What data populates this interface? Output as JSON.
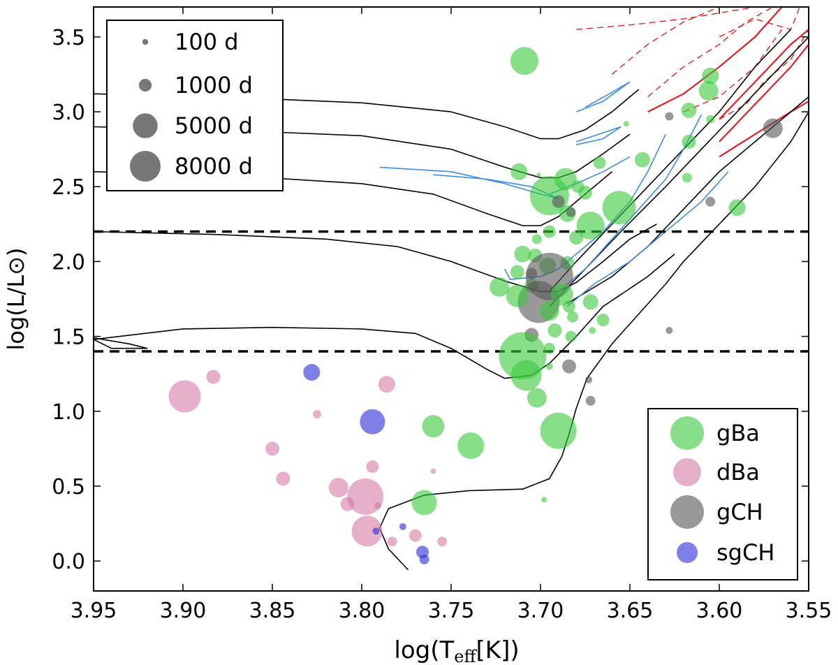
{
  "chart_data": {
    "type": "scatter",
    "xlabel_main": "log(T",
    "xlabel_sub": "eff",
    "xlabel_tail": "[K])",
    "ylabel": "log(L/L⊙)",
    "xlim": [
      3.95,
      3.55
    ],
    "ylim": [
      -0.2,
      3.7
    ],
    "x_ticks": [
      "3.95",
      "3.90",
      "3.85",
      "3.80",
      "3.75",
      "3.70",
      "3.65",
      "3.60",
      "3.55"
    ],
    "x_tick_values": [
      3.95,
      3.9,
      3.85,
      3.8,
      3.75,
      3.7,
      3.65,
      3.6,
      3.55
    ],
    "y_ticks": [
      "0.0",
      "0.5",
      "1.0",
      "1.5",
      "2.0",
      "2.5",
      "3.0",
      "3.5"
    ],
    "y_tick_values": [
      0.0,
      0.5,
      1.0,
      1.5,
      2.0,
      2.5,
      3.0,
      3.5
    ],
    "hlines": [
      2.2,
      1.4
    ],
    "size_legend": [
      {
        "label": "100 d",
        "period": 100
      },
      {
        "label": "1000 d",
        "period": 1000
      },
      {
        "label": "5000 d",
        "period": 5000
      },
      {
        "label": "8000 d",
        "period": 8000
      }
    ],
    "class_legend": [
      {
        "label": "gBa",
        "color": "#3ac83a"
      },
      {
        "label": "dBa",
        "color": "#d67aa6"
      },
      {
        "label": "gCH",
        "color": "#555555"
      },
      {
        "label": "sgCH",
        "color": "#2a2ad8"
      }
    ],
    "track_colors": {
      "main": "#000000",
      "blue": "#3a8ee0",
      "red": "#e02020"
    },
    "tracks": [
      [
        [
          3.95,
          3.12
        ],
        [
          3.88,
          3.1
        ],
        [
          3.8,
          3.06
        ],
        [
          3.75,
          3.0
        ],
        [
          3.72,
          2.9
        ],
        [
          3.7,
          2.82
        ],
        [
          3.69,
          2.82
        ],
        [
          3.675,
          2.88
        ],
        [
          3.66,
          3.0
        ],
        [
          3.645,
          3.15
        ]
      ],
      [
        [
          3.95,
          2.9
        ],
        [
          3.88,
          2.88
        ],
        [
          3.8,
          2.84
        ],
        [
          3.75,
          2.75
        ],
        [
          3.72,
          2.63
        ],
        [
          3.7,
          2.56
        ],
        [
          3.69,
          2.56
        ],
        [
          3.68,
          2.6
        ],
        [
          3.665,
          2.72
        ],
        [
          3.65,
          2.85
        ]
      ],
      [
        [
          3.95,
          2.6
        ],
        [
          3.88,
          2.58
        ],
        [
          3.8,
          2.52
        ],
        [
          3.76,
          2.45
        ],
        [
          3.73,
          2.32
        ],
        [
          3.71,
          2.24
        ],
        [
          3.7,
          2.24
        ],
        [
          3.69,
          2.3
        ],
        [
          3.675,
          2.45
        ],
        [
          3.66,
          2.6
        ]
      ],
      [
        [
          3.95,
          2.2
        ],
        [
          3.88,
          2.18
        ],
        [
          3.82,
          2.15
        ],
        [
          3.78,
          2.1
        ],
        [
          3.75,
          2.0
        ],
        [
          3.72,
          1.87
        ],
        [
          3.7,
          1.8
        ],
        [
          3.69,
          1.8
        ],
        [
          3.68,
          1.86
        ],
        [
          3.665,
          2.0
        ],
        [
          3.65,
          2.15
        ],
        [
          3.635,
          2.25
        ]
      ],
      [
        [
          3.95,
          1.49
        ],
        [
          3.93,
          1.45
        ],
        [
          3.92,
          1.42
        ],
        [
          3.94,
          1.42
        ],
        [
          3.95,
          1.48
        ],
        [
          3.9,
          1.55
        ],
        [
          3.85,
          1.56
        ],
        [
          3.8,
          1.55
        ],
        [
          3.77,
          1.52
        ],
        [
          3.75,
          1.42
        ],
        [
          3.73,
          1.28
        ],
        [
          3.72,
          1.22
        ],
        [
          3.705,
          1.24
        ],
        [
          3.695,
          1.32
        ],
        [
          3.68,
          1.5
        ],
        [
          3.665,
          1.7
        ],
        [
          3.64,
          1.9
        ],
        [
          3.625,
          2.05
        ]
      ],
      [
        [
          3.774,
          -0.06
        ],
        [
          3.785,
          0.08
        ],
        [
          3.79,
          0.22
        ],
        [
          3.785,
          0.35
        ],
        [
          3.765,
          0.44
        ],
        [
          3.74,
          0.47
        ],
        [
          3.71,
          0.48
        ],
        [
          3.695,
          0.55
        ],
        [
          3.688,
          0.7
        ],
        [
          3.684,
          0.85
        ],
        [
          3.68,
          1.02
        ],
        [
          3.674,
          1.22
        ],
        [
          3.66,
          1.45
        ],
        [
          3.645,
          1.65
        ],
        [
          3.63,
          1.85
        ],
        [
          3.62,
          2.0
        ],
        [
          3.6,
          2.25
        ],
        [
          3.58,
          2.5
        ],
        [
          3.56,
          2.8
        ],
        [
          3.55,
          3.0
        ]
      ],
      [
        [
          3.695,
          1.8
        ],
        [
          3.68,
          2.0
        ],
        [
          3.66,
          2.25
        ],
        [
          3.64,
          2.5
        ],
        [
          3.62,
          2.75
        ],
        [
          3.6,
          3.0
        ],
        [
          3.58,
          3.3
        ],
        [
          3.56,
          3.55
        ]
      ],
      [
        [
          3.695,
          1.7
        ],
        [
          3.675,
          1.95
        ],
        [
          3.655,
          2.2
        ],
        [
          3.63,
          2.5
        ],
        [
          3.61,
          2.75
        ],
        [
          3.59,
          3.0
        ],
        [
          3.57,
          3.25
        ],
        [
          3.55,
          3.5
        ]
      ],
      [
        [
          3.685,
          1.72
        ],
        [
          3.66,
          1.9
        ],
        [
          3.64,
          2.1
        ],
        [
          3.62,
          2.35
        ],
        [
          3.6,
          2.6
        ],
        [
          3.58,
          2.8
        ],
        [
          3.56,
          3.0
        ],
        [
          3.55,
          3.1
        ]
      ]
    ],
    "blue_tracks": [
      [
        [
          3.79,
          2.63
        ],
        [
          3.75,
          2.6
        ],
        [
          3.72,
          2.52
        ],
        [
          3.7,
          2.45
        ],
        [
          3.69,
          2.42
        ],
        [
          3.705,
          2.5
        ],
        [
          3.73,
          2.55
        ],
        [
          3.76,
          2.58
        ]
      ],
      [
        [
          3.68,
          2.78
        ],
        [
          3.665,
          2.82
        ],
        [
          3.655,
          2.9
        ],
        [
          3.665,
          2.86
        ],
        [
          3.68,
          2.8
        ]
      ],
      [
        [
          3.68,
          3.0
        ],
        [
          3.665,
          3.07
        ],
        [
          3.65,
          3.2
        ],
        [
          3.66,
          3.13
        ],
        [
          3.675,
          3.03
        ]
      ],
      [
        [
          3.69,
          1.8
        ],
        [
          3.675,
          1.95
        ],
        [
          3.66,
          2.15
        ],
        [
          3.645,
          2.35
        ],
        [
          3.63,
          2.55
        ],
        [
          3.62,
          2.75
        ],
        [
          3.61,
          2.98
        ]
      ],
      [
        [
          3.72,
          1.95
        ],
        [
          3.717,
          1.88
        ],
        [
          3.7,
          1.9
        ],
        [
          3.69,
          1.95
        ],
        [
          3.68,
          2.05
        ],
        [
          3.665,
          2.2
        ],
        [
          3.65,
          2.4
        ],
        [
          3.64,
          2.6
        ],
        [
          3.63,
          2.85
        ]
      ],
      [
        [
          3.685,
          1.7
        ],
        [
          3.67,
          1.85
        ],
        [
          3.65,
          2.0
        ],
        [
          3.63,
          2.2
        ],
        [
          3.61,
          2.4
        ],
        [
          3.595,
          2.6
        ]
      ],
      [
        [
          3.695,
          2.45
        ],
        [
          3.68,
          2.52
        ],
        [
          3.665,
          2.6
        ],
        [
          3.65,
          2.7
        ]
      ]
    ],
    "red_tracks": [
      [
        [
          3.64,
          3.0
        ],
        [
          3.62,
          3.12
        ],
        [
          3.6,
          3.3
        ],
        [
          3.58,
          3.5
        ],
        [
          3.565,
          3.7
        ]
      ],
      [
        [
          3.6,
          2.8
        ],
        [
          3.58,
          3.05
        ],
        [
          3.56,
          3.3
        ],
        [
          3.55,
          3.45
        ]
      ],
      [
        [
          3.6,
          2.7
        ],
        [
          3.58,
          2.85
        ],
        [
          3.56,
          3.0
        ],
        [
          3.55,
          3.07
        ]
      ],
      [
        [
          3.6,
          2.95
        ],
        [
          3.58,
          3.2
        ],
        [
          3.56,
          3.45
        ],
        [
          3.55,
          3.55
        ]
      ]
    ],
    "red_dashed": [
      [
        [
          3.64,
          3.1
        ],
        [
          3.62,
          3.3
        ],
        [
          3.6,
          3.45
        ],
        [
          3.585,
          3.6
        ],
        [
          3.57,
          3.7
        ]
      ],
      [
        [
          3.66,
          3.25
        ],
        [
          3.64,
          3.45
        ],
        [
          3.62,
          3.6
        ],
        [
          3.6,
          3.7
        ]
      ],
      [
        [
          3.68,
          3.55
        ],
        [
          3.65,
          3.58
        ],
        [
          3.62,
          3.62
        ],
        [
          3.6,
          3.66
        ],
        [
          3.58,
          3.7
        ]
      ],
      [
        [
          3.62,
          3.0
        ],
        [
          3.6,
          3.1
        ],
        [
          3.58,
          3.3
        ],
        [
          3.565,
          3.55
        ]
      ],
      [
        [
          3.6,
          2.95
        ],
        [
          3.585,
          3.05
        ],
        [
          3.575,
          3.2
        ],
        [
          3.56,
          3.35
        ],
        [
          3.55,
          3.55
        ]
      ],
      [
        [
          3.6,
          3.5
        ],
        [
          3.58,
          3.62
        ],
        [
          3.56,
          3.55
        ],
        [
          3.555,
          3.7
        ]
      ]
    ],
    "points": [
      {
        "x": 3.709,
        "y": 3.34,
        "r": 20,
        "c": "gBa"
      },
      {
        "x": 3.605,
        "y": 3.24,
        "r": 12,
        "c": "gBa"
      },
      {
        "x": 3.606,
        "y": 3.14,
        "r": 14,
        "c": "gBa"
      },
      {
        "x": 3.617,
        "y": 3.01,
        "r": 11,
        "c": "gBa"
      },
      {
        "x": 3.605,
        "y": 2.95,
        "r": 6,
        "c": "gBa"
      },
      {
        "x": 3.628,
        "y": 2.97,
        "r": 6,
        "c": "gCH"
      },
      {
        "x": 3.57,
        "y": 2.89,
        "r": 14,
        "c": "gCH"
      },
      {
        "x": 3.617,
        "y": 2.8,
        "r": 10,
        "c": "gBa"
      },
      {
        "x": 3.643,
        "y": 2.68,
        "r": 11,
        "c": "gBa"
      },
      {
        "x": 3.667,
        "y": 2.66,
        "r": 9,
        "c": "gBa"
      },
      {
        "x": 3.712,
        "y": 2.6,
        "r": 12,
        "c": "gBa"
      },
      {
        "x": 3.686,
        "y": 2.55,
        "r": 16,
        "c": "gBa"
      },
      {
        "x": 3.695,
        "y": 2.44,
        "r": 28,
        "c": "gBa"
      },
      {
        "x": 3.679,
        "y": 2.5,
        "r": 9,
        "c": "gBa"
      },
      {
        "x": 3.675,
        "y": 2.46,
        "r": 10,
        "c": "gBa"
      },
      {
        "x": 3.618,
        "y": 2.56,
        "r": 7,
        "c": "gBa"
      },
      {
        "x": 3.69,
        "y": 2.4,
        "r": 9,
        "c": "gCH"
      },
      {
        "x": 3.656,
        "y": 2.36,
        "r": 24,
        "c": "gBa"
      },
      {
        "x": 3.605,
        "y": 2.4,
        "r": 7,
        "c": "gCH"
      },
      {
        "x": 3.59,
        "y": 2.36,
        "r": 12,
        "c": "gBa"
      },
      {
        "x": 3.685,
        "y": 2.32,
        "r": 12,
        "c": "gBa"
      },
      {
        "x": 3.683,
        "y": 2.33,
        "r": 7,
        "c": "gCH"
      },
      {
        "x": 3.672,
        "y": 2.24,
        "r": 20,
        "c": "gBa"
      },
      {
        "x": 3.695,
        "y": 2.2,
        "r": 9,
        "c": "gBa"
      },
      {
        "x": 3.68,
        "y": 2.16,
        "r": 10,
        "c": "gBa"
      },
      {
        "x": 3.702,
        "y": 2.15,
        "r": 7,
        "c": "gBa"
      },
      {
        "x": 3.71,
        "y": 2.05,
        "r": 12,
        "c": "gBa"
      },
      {
        "x": 3.703,
        "y": 2.04,
        "r": 10,
        "c": "gBa"
      },
      {
        "x": 3.696,
        "y": 1.97,
        "r": 12,
        "c": "gBa"
      },
      {
        "x": 3.685,
        "y": 1.99,
        "r": 10,
        "c": "gBa"
      },
      {
        "x": 3.713,
        "y": 1.93,
        "r": 10,
        "c": "gBa"
      },
      {
        "x": 3.723,
        "y": 1.83,
        "r": 14,
        "c": "gBa"
      },
      {
        "x": 3.705,
        "y": 1.84,
        "r": 10,
        "c": "gBa"
      },
      {
        "x": 3.705,
        "y": 1.92,
        "r": 8,
        "c": "gCH"
      },
      {
        "x": 3.695,
        "y": 1.9,
        "r": 34,
        "c": "gCH"
      },
      {
        "x": 3.701,
        "y": 1.73,
        "r": 30,
        "c": "gCH"
      },
      {
        "x": 3.713,
        "y": 1.77,
        "r": 16,
        "c": "gBa"
      },
      {
        "x": 3.688,
        "y": 1.78,
        "r": 16,
        "c": "gBa"
      },
      {
        "x": 3.695,
        "y": 1.67,
        "r": 14,
        "c": "gBa"
      },
      {
        "x": 3.684,
        "y": 1.7,
        "r": 9,
        "c": "gBa"
      },
      {
        "x": 3.672,
        "y": 1.73,
        "r": 11,
        "c": "gBa"
      },
      {
        "x": 3.665,
        "y": 1.61,
        "r": 9,
        "c": "gBa"
      },
      {
        "x": 3.682,
        "y": 1.63,
        "r": 8,
        "c": "gBa"
      },
      {
        "x": 3.692,
        "y": 1.54,
        "r": 10,
        "c": "gBa"
      },
      {
        "x": 3.671,
        "y": 1.54,
        "r": 5,
        "c": "gBa"
      },
      {
        "x": 3.683,
        "y": 1.5,
        "r": 8,
        "c": "gBa"
      },
      {
        "x": 3.705,
        "y": 1.51,
        "r": 10,
        "c": "gCH"
      },
      {
        "x": 3.695,
        "y": 1.42,
        "r": 8,
        "c": "gBa"
      },
      {
        "x": 3.71,
        "y": 1.37,
        "r": 34,
        "c": "gBa"
      },
      {
        "x": 3.708,
        "y": 1.24,
        "r": 22,
        "c": "gBa"
      },
      {
        "x": 3.695,
        "y": 1.3,
        "r": 5,
        "c": "gBa"
      },
      {
        "x": 3.684,
        "y": 1.3,
        "r": 10,
        "c": "gCH"
      },
      {
        "x": 3.673,
        "y": 1.21,
        "r": 5,
        "c": "gCH"
      },
      {
        "x": 3.672,
        "y": 1.07,
        "r": 7,
        "c": "gCH"
      },
      {
        "x": 3.628,
        "y": 1.54,
        "r": 5,
        "c": "gCH"
      },
      {
        "x": 3.702,
        "y": 1.09,
        "r": 14,
        "c": "gBa"
      },
      {
        "x": 3.69,
        "y": 0.87,
        "r": 26,
        "c": "gBa"
      },
      {
        "x": 3.76,
        "y": 0.9,
        "r": 16,
        "c": "gBa"
      },
      {
        "x": 3.739,
        "y": 0.77,
        "r": 19,
        "c": "gBa"
      },
      {
        "x": 3.765,
        "y": 0.39,
        "r": 18,
        "c": "gBa"
      },
      {
        "x": 3.698,
        "y": 0.41,
        "r": 4,
        "c": "gBa"
      },
      {
        "x": 3.701,
        "y": 2.58,
        "r": 3,
        "c": "gBa"
      },
      {
        "x": 3.652,
        "y": 2.92,
        "r": 4,
        "c": "gBa"
      },
      {
        "x": 3.899,
        "y": 1.1,
        "r": 23,
        "c": "dBa"
      },
      {
        "x": 3.883,
        "y": 1.23,
        "r": 10,
        "c": "dBa"
      },
      {
        "x": 3.786,
        "y": 1.18,
        "r": 12,
        "c": "dBa"
      },
      {
        "x": 3.825,
        "y": 0.98,
        "r": 6,
        "c": "dBa"
      },
      {
        "x": 3.85,
        "y": 0.75,
        "r": 10,
        "c": "dBa"
      },
      {
        "x": 3.844,
        "y": 0.55,
        "r": 10,
        "c": "dBa"
      },
      {
        "x": 3.794,
        "y": 0.63,
        "r": 9,
        "c": "dBa"
      },
      {
        "x": 3.76,
        "y": 0.6,
        "r": 4,
        "c": "dBa"
      },
      {
        "x": 3.813,
        "y": 0.49,
        "r": 14,
        "c": "dBa"
      },
      {
        "x": 3.798,
        "y": 0.43,
        "r": 26,
        "c": "dBa"
      },
      {
        "x": 3.808,
        "y": 0.38,
        "r": 10,
        "c": "dBa"
      },
      {
        "x": 3.791,
        "y": 0.37,
        "r": 5,
        "c": "dBa"
      },
      {
        "x": 3.797,
        "y": 0.2,
        "r": 22,
        "c": "dBa"
      },
      {
        "x": 3.783,
        "y": 0.13,
        "r": 7,
        "c": "dBa"
      },
      {
        "x": 3.77,
        "y": 0.17,
        "r": 9,
        "c": "dBa"
      },
      {
        "x": 3.755,
        "y": 0.13,
        "r": 7,
        "c": "dBa"
      },
      {
        "x": 3.828,
        "y": 1.26,
        "r": 12,
        "c": "sgCH"
      },
      {
        "x": 3.794,
        "y": 0.93,
        "r": 18,
        "c": "sgCH"
      },
      {
        "x": 3.792,
        "y": 0.2,
        "r": 5,
        "c": "sgCH"
      },
      {
        "x": 3.777,
        "y": 0.23,
        "r": 5,
        "c": "sgCH"
      },
      {
        "x": 3.766,
        "y": 0.06,
        "r": 9,
        "c": "sgCH"
      },
      {
        "x": 3.765,
        "y": 0.01,
        "r": 7,
        "c": "sgCH"
      }
    ]
  }
}
